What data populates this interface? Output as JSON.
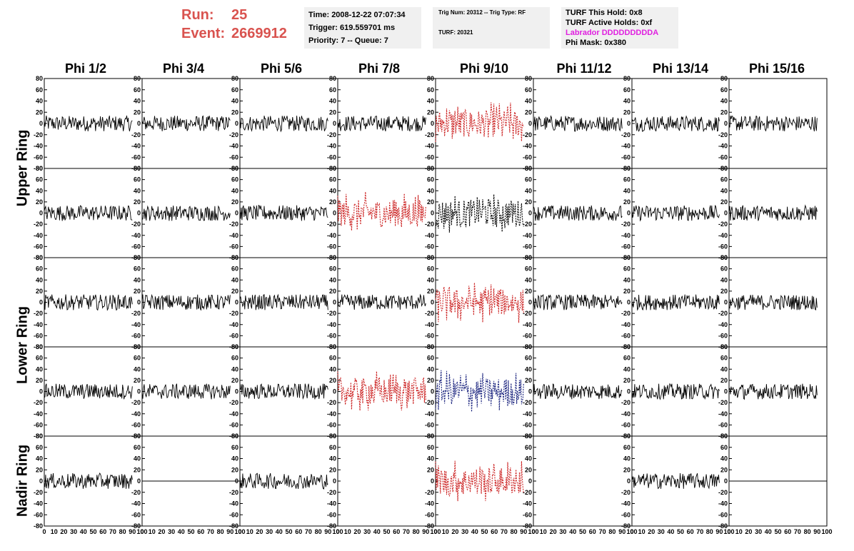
{
  "run": {
    "run_label": "Run:",
    "run_value": "25",
    "event_label": "Event:",
    "event_value": "2669912"
  },
  "info_time": {
    "time": "Time: 2008-12-22 07:07:34",
    "trigger": "Trigger: 619.559701 ms",
    "priority": "Priority: 7 -- Queue: 7"
  },
  "info_trig": {
    "trig": "Trig Num: 20312 -- Trig Type: RF",
    "turf": "TURF: 20321"
  },
  "info_turf": {
    "this_hold": "TURF This Hold: 0x8",
    "active_holds": "TURF Active Holds: 0xf",
    "labrador": "Labrador DDDDDDDDDA",
    "phi_mask": "Phi Mask: 0x380"
  },
  "columns": [
    "Phi 1/2",
    "Phi 3/4",
    "Phi 5/6",
    "Phi 7/8",
    "Phi 9/10",
    "Phi 11/12",
    "Phi 13/14",
    "Phi 15/16"
  ],
  "row_labels": [
    "Upper Ring",
    "Lower Ring",
    "Nadir Ring"
  ],
  "axes": {
    "y_ticks": [
      "80",
      "60",
      "40",
      "20",
      "0",
      "-20",
      "-40",
      "-60",
      "-80"
    ],
    "x_ticks": [
      "0",
      "10",
      "20",
      "30",
      "40",
      "50",
      "60",
      "70",
      "80",
      "90",
      "100"
    ]
  },
  "colors": {
    "normal": "#000000",
    "red_trace": "#cc2222",
    "blue_trace": "#1a237e",
    "run_text": "#d9534f",
    "labrador_text": "#e020e0"
  },
  "chart_data": {
    "type": "line",
    "x_range": [
      0,
      100
    ],
    "y_range": [
      -80,
      80
    ],
    "panels": [
      [
        "black",
        "black",
        "black",
        "black",
        "red_dashed",
        "black",
        "black",
        "black"
      ],
      [
        "black",
        "black",
        "black",
        "red_dashed",
        "black_dashed",
        "black",
        "black",
        "black"
      ],
      [
        "black",
        "black",
        "black",
        "black",
        "red_dashed",
        "black",
        "black",
        "black"
      ],
      [
        "black",
        "black",
        "black",
        "red_dashed",
        "blue_dashed",
        "black",
        "black",
        "black"
      ],
      [
        "black",
        "flat",
        "black",
        "empty",
        "red_dashed",
        "empty",
        "black",
        "flat"
      ]
    ]
  }
}
